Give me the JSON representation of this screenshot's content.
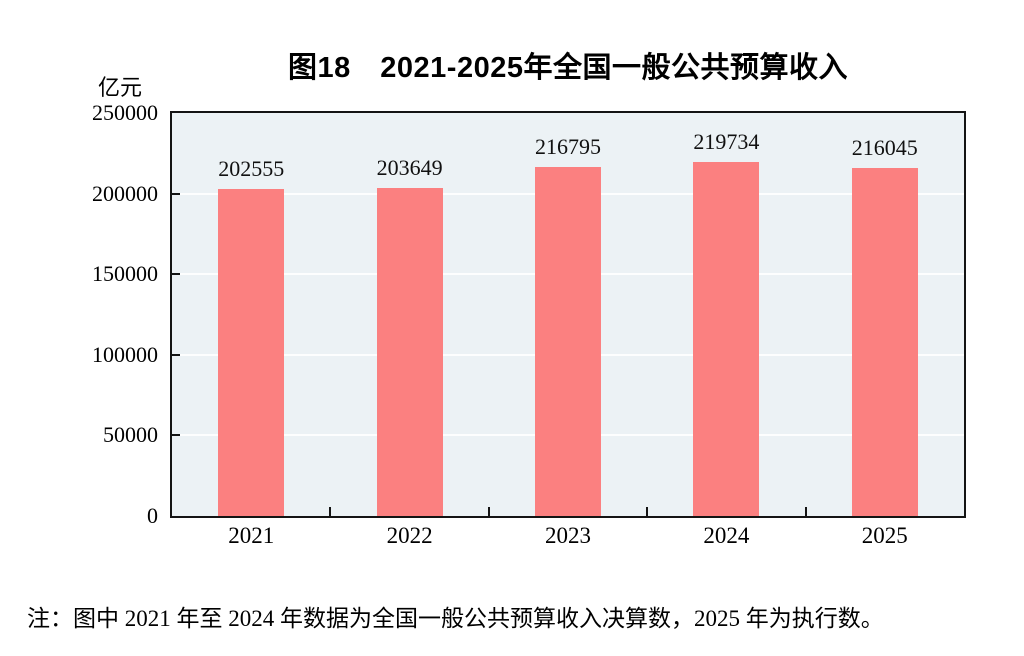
{
  "chart_data": {
    "type": "bar",
    "title": "图18　2021-2025年全国一般公共预算收入",
    "unit_label": "亿元",
    "categories": [
      "2021",
      "2022",
      "2023",
      "2024",
      "2025"
    ],
    "values": [
      202555,
      203649,
      216795,
      219734,
      216045
    ],
    "value_labels": [
      "202555",
      "203649",
      "216795",
      "219734",
      "216045"
    ],
    "ylim": [
      0,
      250000
    ],
    "yticks": [
      0,
      50000,
      100000,
      150000,
      200000,
      250000
    ],
    "ytick_labels": [
      "0",
      "50000",
      "100000",
      "150000",
      "200000",
      "250000"
    ],
    "grid": true,
    "legend": "none",
    "bar_color": "#FB8080",
    "plot_bg": "#ECF2F5",
    "axis_color": "#141414",
    "note": "注：图中 2021 年至 2024 年数据为全国一般公共预算收入决算数，2025 年为执行数。"
  }
}
